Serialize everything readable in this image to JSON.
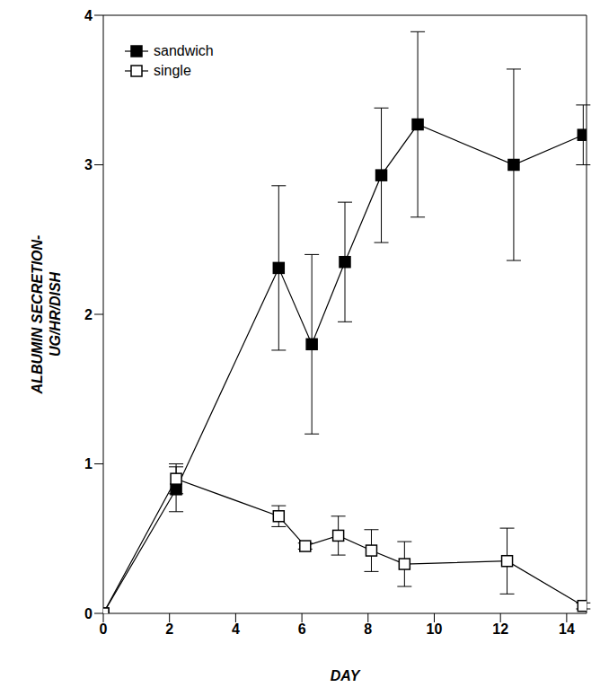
{
  "chart_data": {
    "type": "line",
    "x_label": "DAY",
    "y_label": "ALBUMIN SECRETION-\nUG/HR/DISH",
    "xlim": [
      0,
      14.6
    ],
    "xticks": [
      0,
      2,
      4,
      6,
      8,
      10,
      12,
      14
    ],
    "ylim": [
      0,
      4
    ],
    "yticks": [
      0,
      1,
      2,
      3,
      4
    ],
    "grid": false,
    "legend": "upper left",
    "series": [
      {
        "name": "sandwich",
        "color": "#000000",
        "marker": "filled_square",
        "line_style": "solid",
        "x": [
          0,
          2.2,
          5.3,
          6.3,
          7.3,
          8.4,
          9.5,
          12.4,
          14.5
        ],
        "values": [
          0,
          0.83,
          2.31,
          1.8,
          2.35,
          2.93,
          3.27,
          3.0,
          3.2
        ],
        "errors": [
          0,
          0.15,
          0.55,
          0.6,
          0.4,
          0.45,
          0.62,
          0.64,
          0.2
        ]
      },
      {
        "name": "single",
        "color": "#000000",
        "marker": "open_square",
        "line_style": "solid",
        "x": [
          0,
          2.2,
          5.3,
          6.1,
          7.1,
          8.1,
          9.1,
          12.2,
          14.5
        ],
        "values": [
          0,
          0.9,
          0.65,
          0.45,
          0.52,
          0.42,
          0.33,
          0.35,
          0.05
        ],
        "errors": [
          0,
          0.1,
          0.07,
          0.02,
          0.13,
          0.14,
          0.15,
          0.22,
          0.02
        ]
      }
    ]
  }
}
